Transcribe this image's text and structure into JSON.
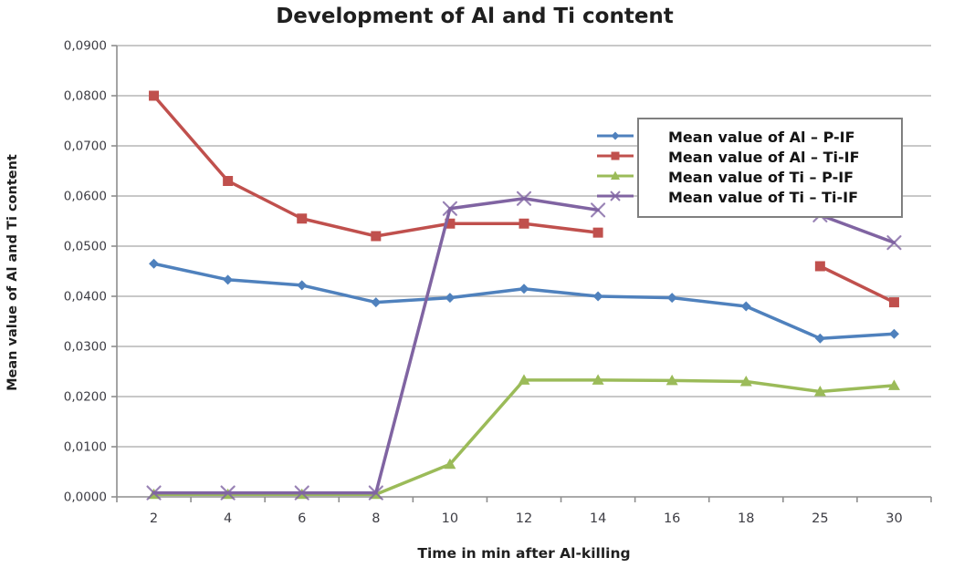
{
  "page": {
    "background": "#ffffff"
  },
  "chart_data": {
    "type": "line",
    "title": "Development of Al and Ti content",
    "xlabel": "Time in min after Al-killing",
    "ylabel": "Mean value of Al and Ti content",
    "categories": [
      "2",
      "4",
      "6",
      "8",
      "10",
      "12",
      "14",
      "16",
      "18",
      "25",
      "30"
    ],
    "y_ticks": [
      "0,0000",
      "0,0100",
      "0,0200",
      "0,0300",
      "0,0400",
      "0,0500",
      "0,0600",
      "0,0700",
      "0,0800",
      "0,0900"
    ],
    "ylim": [
      0,
      0.09
    ],
    "grid": "horizontal",
    "legend_position": "upper-right-inside",
    "axis_color": "#8e8e8e",
    "gridline_color": "#b6b6b6",
    "tick_label_color": "#3d3d44",
    "series": [
      {
        "name": "Mean value of Al – P-IF",
        "color": "#4f81bd",
        "marker": "diamond",
        "values": [
          0.0465,
          0.0433,
          0.0422,
          0.0388,
          0.0397,
          0.0415,
          0.04,
          0.0397,
          0.038,
          0.0316,
          0.0325
        ]
      },
      {
        "name": "Mean value of Al – Ti-IF",
        "color": "#c0504d",
        "marker": "square",
        "values": [
          0.08,
          0.063,
          0.0555,
          0.052,
          0.0545,
          0.0545,
          0.0527,
          null,
          null,
          0.046,
          0.0388
        ]
      },
      {
        "name": "Mean value of Ti – P-IF",
        "color": "#9bbb59",
        "marker": "triangle",
        "values": [
          0.0005,
          0.0005,
          0.0005,
          0.0005,
          0.0065,
          0.0233,
          0.0233,
          0.0232,
          0.023,
          0.021,
          0.0222
        ]
      },
      {
        "name": "Mean value of Ti – Ti-IF",
        "color": "#8064a2",
        "marker": "x",
        "values": [
          0.0008,
          0.0008,
          0.0008,
          0.0008,
          0.0575,
          0.0595,
          0.0572,
          null,
          null,
          0.0562,
          0.0507
        ]
      }
    ]
  }
}
